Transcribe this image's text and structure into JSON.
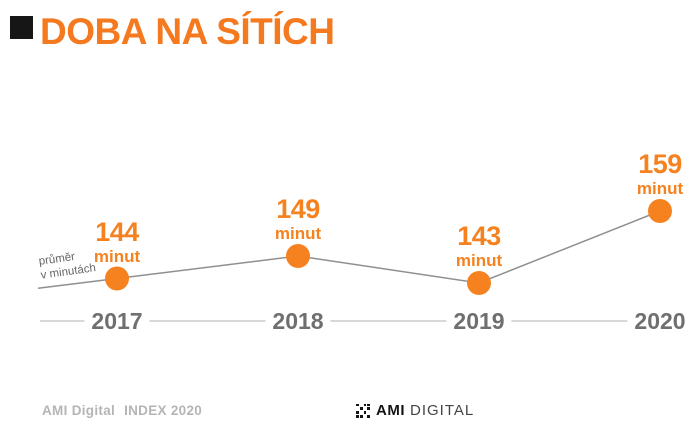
{
  "header": {
    "title": "DOBA NA SÍTÍCH",
    "accent_color": "#F4791F",
    "square_color": "#161616"
  },
  "chart_data": {
    "type": "line",
    "title": "DOBA NA SÍTÍCH",
    "x": [
      "2017",
      "2018",
      "2019",
      "2020"
    ],
    "values": [
      144,
      149,
      143,
      159
    ],
    "unit": "minut",
    "ylabel": "průměr v minutách",
    "ylabel_lines": [
      "průměr",
      "v minutách"
    ],
    "xlabel": "",
    "point_color": "#F5821F",
    "line_color": "#8F8F8F",
    "axis_line_color": "#CBCBCB",
    "tick_color": "#6F6F6F",
    "grid": false,
    "legend": false
  },
  "footer": {
    "credit_brand": "AMI Digital",
    "credit_index": "INDEX 2020",
    "logo_ami": "AMI",
    "logo_digital": "DIGITAL"
  }
}
